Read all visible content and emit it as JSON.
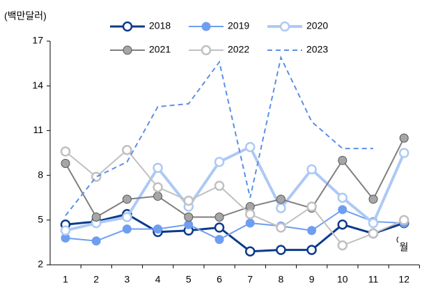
{
  "chart_data": {
    "type": "line",
    "unit_label": "(백만달러)",
    "x_unit_label": "월",
    "categories": [
      "1",
      "2",
      "3",
      "4",
      "5",
      "6",
      "7",
      "8",
      "9",
      "10",
      "11",
      "12"
    ],
    "series": [
      {
        "name": "2018",
        "color": "#0b3a8c",
        "marker": "open",
        "dash": false,
        "values": [
          4.7,
          4.9,
          5.4,
          4.2,
          4.3,
          4.5,
          2.9,
          3.0,
          3.0,
          4.7,
          4.1,
          4.8
        ]
      },
      {
        "name": "2019",
        "color": "#6e9ef0",
        "marker": "filled",
        "dash": false,
        "values": [
          3.8,
          3.6,
          4.4,
          4.4,
          4.7,
          3.7,
          4.8,
          4.6,
          4.3,
          5.7,
          4.9,
          4.8
        ]
      },
      {
        "name": "2020",
        "color": "#adc9f5",
        "marker": "open",
        "dash": false,
        "values": [
          4.3,
          4.8,
          5.2,
          8.5,
          5.9,
          8.9,
          9.9,
          5.8,
          8.4,
          6.5,
          4.8,
          9.5
        ]
      },
      {
        "name": "2021",
        "color": "#7f7f7f",
        "marker": "filled",
        "dash": false,
        "values": [
          8.8,
          5.2,
          6.4,
          6.6,
          5.2,
          5.2,
          5.9,
          6.4,
          5.8,
          9.0,
          6.4,
          10.5
        ]
      },
      {
        "name": "2022",
        "color": "#c0c0c0",
        "marker": "open",
        "dash": false,
        "values": [
          9.6,
          7.9,
          9.7,
          7.2,
          6.3,
          7.3,
          5.4,
          4.5,
          5.9,
          3.3,
          4.1,
          5.0
        ]
      },
      {
        "name": "2023",
        "color": "#5b8fe6",
        "marker": "none",
        "dash": true,
        "values": [
          5.3,
          7.9,
          8.9,
          12.6,
          12.8,
          15.6,
          6.5,
          15.9,
          11.6,
          9.8,
          9.8,
          null
        ]
      }
    ],
    "ylim": [
      2,
      17
    ],
    "yticks": [
      2,
      5,
      8,
      11,
      14,
      17
    ],
    "grid": false
  }
}
